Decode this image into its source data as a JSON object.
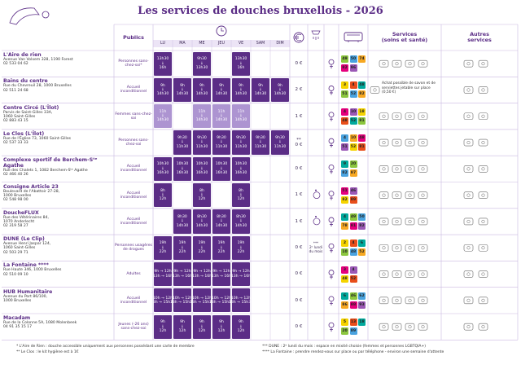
{
  "title": "Les services de douches bruxellois - 2026",
  "headers": {
    "publics": "Publics",
    "days": [
      "LU",
      "MA",
      "ME",
      "JEU",
      "VE",
      "SAM",
      "DIM"
    ],
    "services": [
      "Services",
      "(soins et santé)"
    ],
    "other": [
      "Autres",
      "services"
    ]
  },
  "rows": [
    {
      "name": "L'Aire de rien",
      "address": [
        "Avenue Van Volxem 328, 1190 Forest",
        "02 533 04 62"
      ],
      "publics": "Personnes sans-chez-soi*",
      "schedule": [
        [
          "13h30",
          "↓",
          "16h"
        ],
        null,
        [
          "9h30",
          "↓",
          "13h30"
        ],
        null,
        [
          "13h30",
          "↓",
          "16h"
        ],
        null,
        null
      ],
      "price": "0 €",
      "lines": [
        [
          "49",
          "50",
          "74"
        ],
        [
          "82",
          "96"
        ]
      ],
      "women": false,
      "accessible": false
    },
    {
      "name": "Bains du centre",
      "address": [
        "Rue du Chevreuil 28, 1000 Bruxelles",
        "02 511 24 68"
      ],
      "publics": "Accueil inconditionnel",
      "schedule": [
        [
          "9h",
          "↓",
          "14h30"
        ],
        [
          "9h",
          "↓",
          "14h30"
        ],
        [
          "9h",
          "↓",
          "14h30"
        ],
        [
          "9h",
          "↓",
          "14h30"
        ],
        [
          "9h",
          "↓",
          "14h30"
        ],
        [
          "9h",
          "↓",
          "14h30"
        ],
        [
          "9h",
          "↓",
          "14h30"
        ]
      ],
      "price": "2 €",
      "lines": [
        [
          "3",
          "4",
          "48"
        ],
        [
          "51",
          "52",
          "82"
        ]
      ],
      "women": false,
      "accessible": false,
      "services_text": "Achat possible de savon et de serviettes jetable sur place (0,50 €)"
    },
    {
      "name": "Centre Circé (L'Îlot)",
      "address": [
        "Parvis de Saint-Gilles 33A,",
        "1060 Saint-Gilles",
        "02 883 43 15"
      ],
      "publics": "Femmes sans-chez-soi",
      "schedule": [
        [
          "11h",
          "↓",
          "14h30"
        ],
        null,
        [
          "11h",
          "↓",
          "14h30"
        ],
        [
          "11h",
          "↓",
          "14h30"
        ],
        [
          "11h",
          "↓",
          "14h30"
        ],
        null,
        null
      ],
      "price": "1 €",
      "lines": [
        [
          "4",
          "10",
          "18"
        ],
        [
          "48",
          "52",
          "81"
        ]
      ],
      "women": true,
      "accessible": false
    },
    {
      "name": "Le Clos (L'Îlot)",
      "address": [
        "Rue de l'Église 73, 1060 Saint-Gilles",
        "02 537 33 33"
      ],
      "publics": "Personnes sans-chez-soi",
      "schedule": [
        null,
        [
          "9h30",
          "↓",
          "11h30"
        ],
        [
          "9h30",
          "↓",
          "11h30"
        ],
        [
          "9h30",
          "↓",
          "11h30"
        ],
        [
          "9h30",
          "↓",
          "11h30"
        ],
        [
          "9h30",
          "↓",
          "11h30"
        ],
        [
          "9h30",
          "↓",
          "11h30"
        ]
      ],
      "price_note": "**",
      "price": "0 €",
      "lines": [
        [
          "4",
          "10",
          "48"
        ],
        [
          "51",
          "52",
          "81"
        ]
      ],
      "women": false,
      "accessible": false
    },
    {
      "name": "Complexe sportif de Berchem-Sᵗᵉ Agathe",
      "address": [
        "Rue des Chalets 1, 1082 Berchem-Sᵗᵉ Agathe",
        "02 466 40 26"
      ],
      "publics": "Accueil inconditionnel",
      "schedule": [
        [
          "10h30",
          "↓",
          "16h30"
        ],
        [
          "10h30",
          "↓",
          "16h30"
        ],
        [
          "10h30",
          "↓",
          "16h30"
        ],
        [
          "10h30",
          "↓",
          "16h30"
        ],
        [
          "10h30",
          "↓",
          "16h30"
        ],
        null,
        null
      ],
      "price": "0 €",
      "lines": [
        [
          "9",
          "20"
        ],
        [
          "82",
          "87"
        ]
      ],
      "women": false,
      "accessible": false
    },
    {
      "name": "Consigne Article 23",
      "address": [
        "Boulevard de l'Abattoir 27-28,",
        "1000 Bruxelles",
        "02 548 98 00"
      ],
      "publics": "Accueil inconditionnel",
      "schedule": [
        [
          "8h",
          "↓",
          "12h"
        ],
        null,
        [
          "8h",
          "↓",
          "12h"
        ],
        null,
        [
          "8h",
          "↓",
          "12h"
        ],
        null,
        null
      ],
      "price": "1 €",
      "lines": [
        [
          "51",
          "46"
        ],
        [
          "82",
          "89"
        ]
      ],
      "women": false,
      "accessible": true
    },
    {
      "name": "DoucheFLUX",
      "address": [
        "Rue des Vétérinaires 84,",
        "1070 Anderlecht",
        "02 319 58 27"
      ],
      "publics": "Accueil inconditionnel",
      "schedule": [
        null,
        [
          "8h30",
          "↓",
          "14h30"
        ],
        [
          "8h30",
          "↓",
          "14h30"
        ],
        [
          "8h30",
          "↓",
          "14h30"
        ],
        [
          "8h30",
          "↓",
          "14h30"
        ],
        null,
        null
      ],
      "price": "1 €",
      "lines": [
        [
          "4",
          "49",
          "50"
        ],
        [
          "78",
          "81",
          "82"
        ]
      ],
      "women": false,
      "accessible": true
    },
    {
      "name": "DUNE (Le Clip)",
      "address": [
        "Avenue Henri Jaspar 124,",
        "1060 Saint-Gilles",
        "02 503 29 71"
      ],
      "publics": "Personnes usagères de drogues",
      "schedule": [
        [
          "19h",
          "↓",
          "22h"
        ],
        [
          "19h",
          "↓",
          "22h"
        ],
        [
          "19h",
          "↓",
          "22h"
        ],
        [
          "19h",
          "↓",
          "22h"
        ],
        [
          "19h",
          "↓",
          "22h"
        ],
        null,
        null
      ],
      "price": "0 €",
      "shower_note": [
        "***",
        "2ᵉ lundi",
        "du mois"
      ],
      "lines": [
        [
          "2",
          "4",
          "6"
        ],
        [
          "10",
          "48",
          "52"
        ]
      ],
      "women": false,
      "accessible": false
    },
    {
      "name": "La Fontaine ****",
      "address": [
        "Rue Haute 346, 1000 Bruxelles",
        "02 510 09 10"
      ],
      "publics": "Adultes",
      "schedule": [
        [
          "9h → 12h",
          "13h → 16h"
        ],
        [
          "9h → 12h",
          "13h → 16h"
        ],
        [
          "9h → 12h",
          "13h → 16h"
        ],
        [
          "9h → 12h",
          "13h → 16h"
        ],
        [
          "9h → 12h",
          "13h → 16h"
        ],
        null,
        null
      ],
      "price": "0 €",
      "lines": [
        [
          "3",
          "4"
        ],
        [
          "48",
          "52"
        ]
      ],
      "women": false,
      "accessible": false
    },
    {
      "name": "HUB Humanitaire",
      "address": [
        "Avenue du Port 86/100,",
        "1000 Bruxelles"
      ],
      "publics": "Accueil inconditionnel",
      "schedule": [
        [
          "10h → 12h",
          "13h → 15h30"
        ],
        [
          "10h → 12h",
          "13h → 15h30"
        ],
        [
          "10h → 12h",
          "13h → 15h30"
        ],
        [
          "10h → 12h",
          "13h → 15h30"
        ],
        [
          "10h → 12h",
          "13h → 15h30"
        ],
        null,
        null
      ],
      "price": "0 €",
      "lines": [
        [
          "6",
          "46",
          "62"
        ],
        [
          "86",
          "88",
          "93"
        ]
      ],
      "women": false,
      "accessible": false
    },
    {
      "name": "Macadam",
      "address": [
        "Rue de la Colonne 5A, 1080 Molenbeek",
        "04 91 35 15 17"
      ],
      "publics": "Jeunes (-26 ans) sans-chez-soi",
      "schedule": [
        [
          "9h",
          "↓",
          "12h"
        ],
        [
          "9h",
          "↓",
          "12h"
        ],
        [
          "9h",
          "↓",
          "12h"
        ],
        [
          "9h",
          "↓",
          "12h"
        ],
        [
          "9h",
          "↓",
          "12h"
        ],
        null,
        null
      ],
      "price": "0 €",
      "lines": [
        [
          "5",
          "13",
          "18"
        ],
        [
          "20",
          "89"
        ]
      ],
      "women": false,
      "accessible": false
    }
  ],
  "footnotes": [
    "* L'Aire de Rien : douche accessible uniquement aux personnes possédant une carte de membre",
    "** Le Clos : le kit hygiène est à 1€",
    "*** DUNE : 2ᵉ lundi du mois : espace en mixité choisie (femmes et personnes LGBTQIA+)",
    "**** La Fontaine : prendre rendez-vous sur place ou par téléphone - environ une semaine d'attente"
  ]
}
